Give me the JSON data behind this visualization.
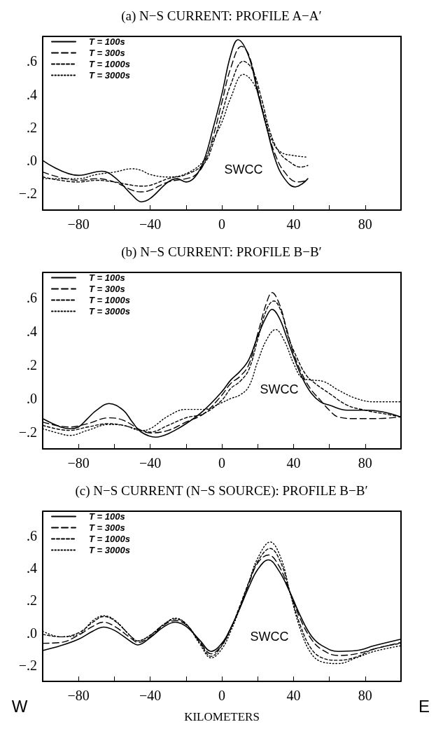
{
  "chart_data": [
    {
      "type": "line",
      "title": "(a) N−S CURRENT: PROFILE A−A′",
      "xlim": [
        -100,
        100
      ],
      "ylim": [
        -0.3,
        0.75
      ],
      "xticks": [
        {
          "value": -100,
          "label": null
        },
        -80,
        {
          "value": -60,
          "label": null
        },
        -40,
        {
          "value": -20,
          "label": null
        },
        0,
        {
          "value": 20,
          "label": null
        },
        40,
        {
          "value": 60,
          "label": null
        },
        80,
        {
          "value": 100,
          "label": null
        }
      ],
      "yticks": [
        {
          "value": -0.2,
          "label": "−.2"
        },
        {
          "value": 0,
          "label": ".0"
        },
        {
          "value": 0.2,
          "label": ".2"
        },
        {
          "value": 0.4,
          "label": ".4"
        },
        {
          "value": 0.6,
          "label": ".6"
        }
      ],
      "grid": false,
      "legend": "top left",
      "marker": "none",
      "annotations": [
        "SWCC"
      ],
      "series": [
        {
          "name": "T = 100s",
          "color": "#000000",
          "line_style": "solid",
          "x": [
            -100,
            -80,
            -67,
            -60,
            -50,
            -45,
            -40,
            -30,
            -25,
            -20,
            -15,
            -10,
            -5,
            0,
            5,
            9,
            15,
            20,
            25,
            30,
            35,
            41,
            45,
            48
          ],
          "values": [
            0,
            -0.09,
            -0.065,
            -0.1,
            -0.21,
            -0.25,
            -0.23,
            -0.13,
            -0.11,
            -0.13,
            -0.1,
            0,
            0.19,
            0.4,
            0.64,
            0.73,
            0.63,
            0.41,
            0.2,
            0,
            -0.11,
            -0.16,
            -0.14,
            -0.11
          ]
        },
        {
          "name": "T = 300s",
          "color": "#000000",
          "line_style": "dashed",
          "x": [
            -100,
            -80,
            -70,
            -60,
            -50,
            -45,
            -40,
            -30,
            -20,
            -15,
            -10,
            -5,
            0,
            5,
            11,
            15,
            20,
            25,
            30,
            35,
            42,
            48
          ],
          "values": [
            -0.07,
            -0.12,
            -0.11,
            -0.13,
            -0.18,
            -0.19,
            -0.18,
            -0.13,
            -0.11,
            -0.09,
            -0.02,
            0.14,
            0.35,
            0.56,
            0.69,
            0.64,
            0.43,
            0.2,
            0.03,
            -0.07,
            -0.13,
            -0.12
          ]
        },
        {
          "name": "T = 1000s",
          "color": "#000000",
          "line_style": "dashed",
          "x": [
            -100,
            -80,
            -70,
            -60,
            -50,
            -45,
            -40,
            -30,
            -20,
            -10,
            -5,
            0,
            5,
            12,
            17,
            22,
            27,
            32,
            38,
            44,
            48
          ],
          "values": [
            -0.1,
            -0.13,
            -0.12,
            -0.13,
            -0.15,
            -0.155,
            -0.15,
            -0.11,
            -0.085,
            -0.02,
            0.1,
            0.28,
            0.46,
            0.6,
            0.55,
            0.38,
            0.17,
            0.05,
            -0.01,
            -0.04,
            -0.03
          ]
        },
        {
          "name": "T = 3000s",
          "color": "#000000",
          "line_style": "dotted",
          "x": [
            -100,
            -90,
            -80,
            -70,
            -60,
            -50,
            -45,
            -40,
            -30,
            -20,
            -10,
            -5,
            0,
            5,
            12,
            18,
            23,
            28,
            33,
            40,
            48
          ],
          "values": [
            -0.11,
            -0.11,
            -0.11,
            -0.085,
            -0.07,
            -0.05,
            -0.06,
            -0.085,
            -0.1,
            -0.08,
            0,
            0.12,
            0.23,
            0.38,
            0.52,
            0.46,
            0.3,
            0.12,
            0.05,
            0.03,
            0.02
          ]
        }
      ]
    },
    {
      "type": "line",
      "title": "(b) N−S CURRENT: PROFILE B−B′",
      "xlim": [
        -100,
        100
      ],
      "ylim": [
        -0.3,
        0.75
      ],
      "xticks": [
        {
          "value": -100,
          "label": null
        },
        -80,
        {
          "value": -60,
          "label": null
        },
        -40,
        {
          "value": -20,
          "label": null
        },
        0,
        {
          "value": 20,
          "label": null
        },
        40,
        {
          "value": 60,
          "label": null
        },
        80,
        {
          "value": 100,
          "label": null
        }
      ],
      "yticks": [
        {
          "value": -0.2,
          "label": "−.2"
        },
        {
          "value": 0,
          "label": ".0"
        },
        {
          "value": 0.2,
          "label": ".2"
        },
        {
          "value": 0.4,
          "label": ".4"
        },
        {
          "value": 0.6,
          "label": ".6"
        }
      ],
      "grid": false,
      "legend": "top left",
      "marker": "none",
      "annotations": [
        "SWCC"
      ],
      "series": [
        {
          "name": "T = 100s",
          "color": "#000000",
          "line_style": "solid",
          "x": [
            -100,
            -90,
            -85,
            -80,
            -75,
            -70,
            -63,
            -55,
            -50,
            -45,
            -37,
            -30,
            -20,
            -10,
            0,
            5,
            10,
            15,
            20,
            25,
            28,
            32,
            36,
            40,
            45,
            50,
            55,
            60,
            70,
            80,
            90,
            100
          ],
          "values": [
            -0.12,
            -0.17,
            -0.18,
            -0.17,
            -0.12,
            -0.07,
            -0.03,
            -0.07,
            -0.14,
            -0.2,
            -0.23,
            -0.21,
            -0.15,
            -0.07,
            0.04,
            0.11,
            0.16,
            0.23,
            0.37,
            0.49,
            0.53,
            0.48,
            0.37,
            0.25,
            0.12,
            0.03,
            -0.02,
            -0.04,
            -0.07,
            -0.07,
            -0.08,
            -0.11
          ]
        },
        {
          "name": "T = 300s",
          "color": "#000000",
          "line_style": "dashed",
          "x": [
            -100,
            -85,
            -75,
            -63,
            -55,
            -45,
            -40,
            -30,
            -20,
            -10,
            0,
            5,
            10,
            15,
            20,
            25,
            28,
            32,
            36,
            40,
            45,
            50,
            55,
            60,
            65,
            75,
            85,
            100
          ],
          "values": [
            -0.14,
            -0.17,
            -0.15,
            -0.115,
            -0.13,
            -0.19,
            -0.205,
            -0.19,
            -0.14,
            -0.09,
            0.02,
            0.09,
            0.13,
            0.2,
            0.385,
            0.57,
            0.63,
            0.565,
            0.42,
            0.27,
            0.14,
            0.05,
            -0.01,
            -0.07,
            -0.11,
            -0.12,
            -0.12,
            -0.11
          ]
        },
        {
          "name": "T = 1000s",
          "color": "#000000",
          "line_style": "dashed",
          "x": [
            -100,
            -85,
            -75,
            -63,
            -55,
            -45,
            -40,
            -30,
            -20,
            -10,
            0,
            5,
            10,
            15,
            20,
            25,
            29,
            33,
            37,
            42,
            47,
            52,
            60,
            70,
            80,
            90,
            100
          ],
          "values": [
            -0.16,
            -0.19,
            -0.17,
            -0.15,
            -0.16,
            -0.19,
            -0.2,
            -0.16,
            -0.115,
            -0.09,
            -0.01,
            0.06,
            0.1,
            0.17,
            0.35,
            0.53,
            0.58,
            0.52,
            0.37,
            0.24,
            0.14,
            0.09,
            0.03,
            -0.04,
            -0.07,
            -0.09,
            -0.11
          ]
        },
        {
          "name": "T = 3000s",
          "color": "#000000",
          "line_style": "dotted",
          "x": [
            -100,
            -90,
            -85,
            -75,
            -63,
            -55,
            -45,
            -40,
            -30,
            -20,
            -10,
            0,
            5,
            10,
            15,
            20,
            25,
            30,
            35,
            40,
            45,
            50,
            57,
            65,
            75,
            85,
            100
          ],
          "values": [
            -0.18,
            -0.21,
            -0.22,
            -0.19,
            -0.155,
            -0.16,
            -0.19,
            -0.18,
            -0.105,
            -0.065,
            -0.065,
            -0.025,
            0,
            0.02,
            0.07,
            0.22,
            0.35,
            0.41,
            0.34,
            0.21,
            0.12,
            0.11,
            0.1,
            0.05,
            0,
            -0.02,
            -0.02
          ]
        }
      ]
    },
    {
      "type": "line",
      "title": "(c) N−S CURRENT (N−S SOURCE): PROFILE B−B′",
      "xlabel": "KILOMETERS",
      "xlim": [
        -100,
        100
      ],
      "ylim": [
        -0.3,
        0.75
      ],
      "xticks": [
        {
          "value": -100,
          "label": null
        },
        -80,
        {
          "value": -60,
          "label": null
        },
        -40,
        {
          "value": -20,
          "label": null
        },
        0,
        {
          "value": 20,
          "label": null
        },
        40,
        {
          "value": 60,
          "label": null
        },
        80,
        {
          "value": 100,
          "label": null
        }
      ],
      "yticks": [
        {
          "value": -0.2,
          "label": "−.2"
        },
        {
          "value": 0,
          "label": ".0"
        },
        {
          "value": 0.2,
          "label": ".2"
        },
        {
          "value": 0.4,
          "label": ".4"
        },
        {
          "value": 0.6,
          "label": ".6"
        }
      ],
      "grid": false,
      "legend": "top left",
      "marker": "none",
      "annotations": [
        "SWCC",
        "W",
        "E"
      ],
      "series": [
        {
          "name": "T = 100s",
          "color": "#000000",
          "line_style": "solid",
          "x": [
            -100,
            -90,
            -80,
            -72,
            -66,
            -60,
            -50,
            -47,
            -40,
            -32,
            -26,
            -20,
            -12,
            -6,
            0,
            5,
            10,
            15,
            20,
            26,
            32,
            38,
            44,
            50,
            56,
            65,
            75,
            85,
            100
          ],
          "values": [
            -0.11,
            -0.08,
            -0.04,
            0.01,
            0.035,
            0.015,
            -0.06,
            -0.075,
            -0.03,
            0.04,
            0.065,
            0.04,
            -0.05,
            -0.115,
            -0.065,
            0.03,
            0.15,
            0.28,
            0.39,
            0.45,
            0.38,
            0.25,
            0.1,
            -0.02,
            -0.08,
            -0.115,
            -0.11,
            -0.08,
            -0.04
          ]
        },
        {
          "name": "T = 300s",
          "color": "#000000",
          "line_style": "dashed",
          "x": [
            -100,
            -90,
            -80,
            -72,
            -66,
            -60,
            -50,
            -47,
            -40,
            -32,
            -26,
            -20,
            -12,
            -6,
            0,
            5,
            10,
            15,
            20,
            26,
            32,
            38,
            44,
            50,
            56,
            65,
            75,
            85,
            100
          ],
          "values": [
            -0.065,
            -0.06,
            -0.015,
            0.04,
            0.065,
            0.04,
            -0.04,
            -0.06,
            -0.025,
            0.05,
            0.075,
            0.05,
            -0.06,
            -0.13,
            -0.075,
            0.03,
            0.155,
            0.3,
            0.43,
            0.48,
            0.41,
            0.25,
            0.08,
            -0.04,
            -0.105,
            -0.14,
            -0.13,
            -0.1,
            -0.06
          ]
        },
        {
          "name": "T = 1000s",
          "color": "#000000",
          "line_style": "dashed",
          "x": [
            -100,
            -90,
            -80,
            -72,
            -66,
            -60,
            -50,
            -47,
            -40,
            -32,
            -26,
            -20,
            -12,
            -6,
            0,
            5,
            10,
            15,
            20,
            27,
            33,
            38,
            44,
            50,
            56,
            65,
            75,
            85,
            100
          ],
          "values": [
            -0.01,
            -0.025,
            0,
            0.065,
            0.1,
            0.075,
            -0.03,
            -0.05,
            -0.015,
            0.055,
            0.085,
            0.055,
            -0.065,
            -0.145,
            -0.08,
            0.025,
            0.165,
            0.31,
            0.44,
            0.52,
            0.43,
            0.25,
            0.04,
            -0.1,
            -0.155,
            -0.17,
            -0.15,
            -0.1,
            -0.065
          ]
        },
        {
          "name": "T = 3000s",
          "color": "#000000",
          "line_style": "dotted",
          "x": [
            -100,
            -90,
            -80,
            -72,
            -66,
            -60,
            -50,
            -47,
            -40,
            -32,
            -26,
            -20,
            -12,
            -6,
            0,
            5,
            10,
            15,
            20,
            27,
            33,
            38,
            44,
            50,
            56,
            65,
            75,
            85,
            100
          ],
          "values": [
            0.01,
            -0.025,
            -0.01,
            0.075,
            0.105,
            0.08,
            -0.03,
            -0.05,
            -0.015,
            0.055,
            0.09,
            0.055,
            -0.075,
            -0.155,
            -0.1,
            0.01,
            0.15,
            0.31,
            0.46,
            0.56,
            0.46,
            0.25,
            0.015,
            -0.13,
            -0.18,
            -0.19,
            -0.155,
            -0.115,
            -0.08
          ]
        }
      ]
    }
  ]
}
